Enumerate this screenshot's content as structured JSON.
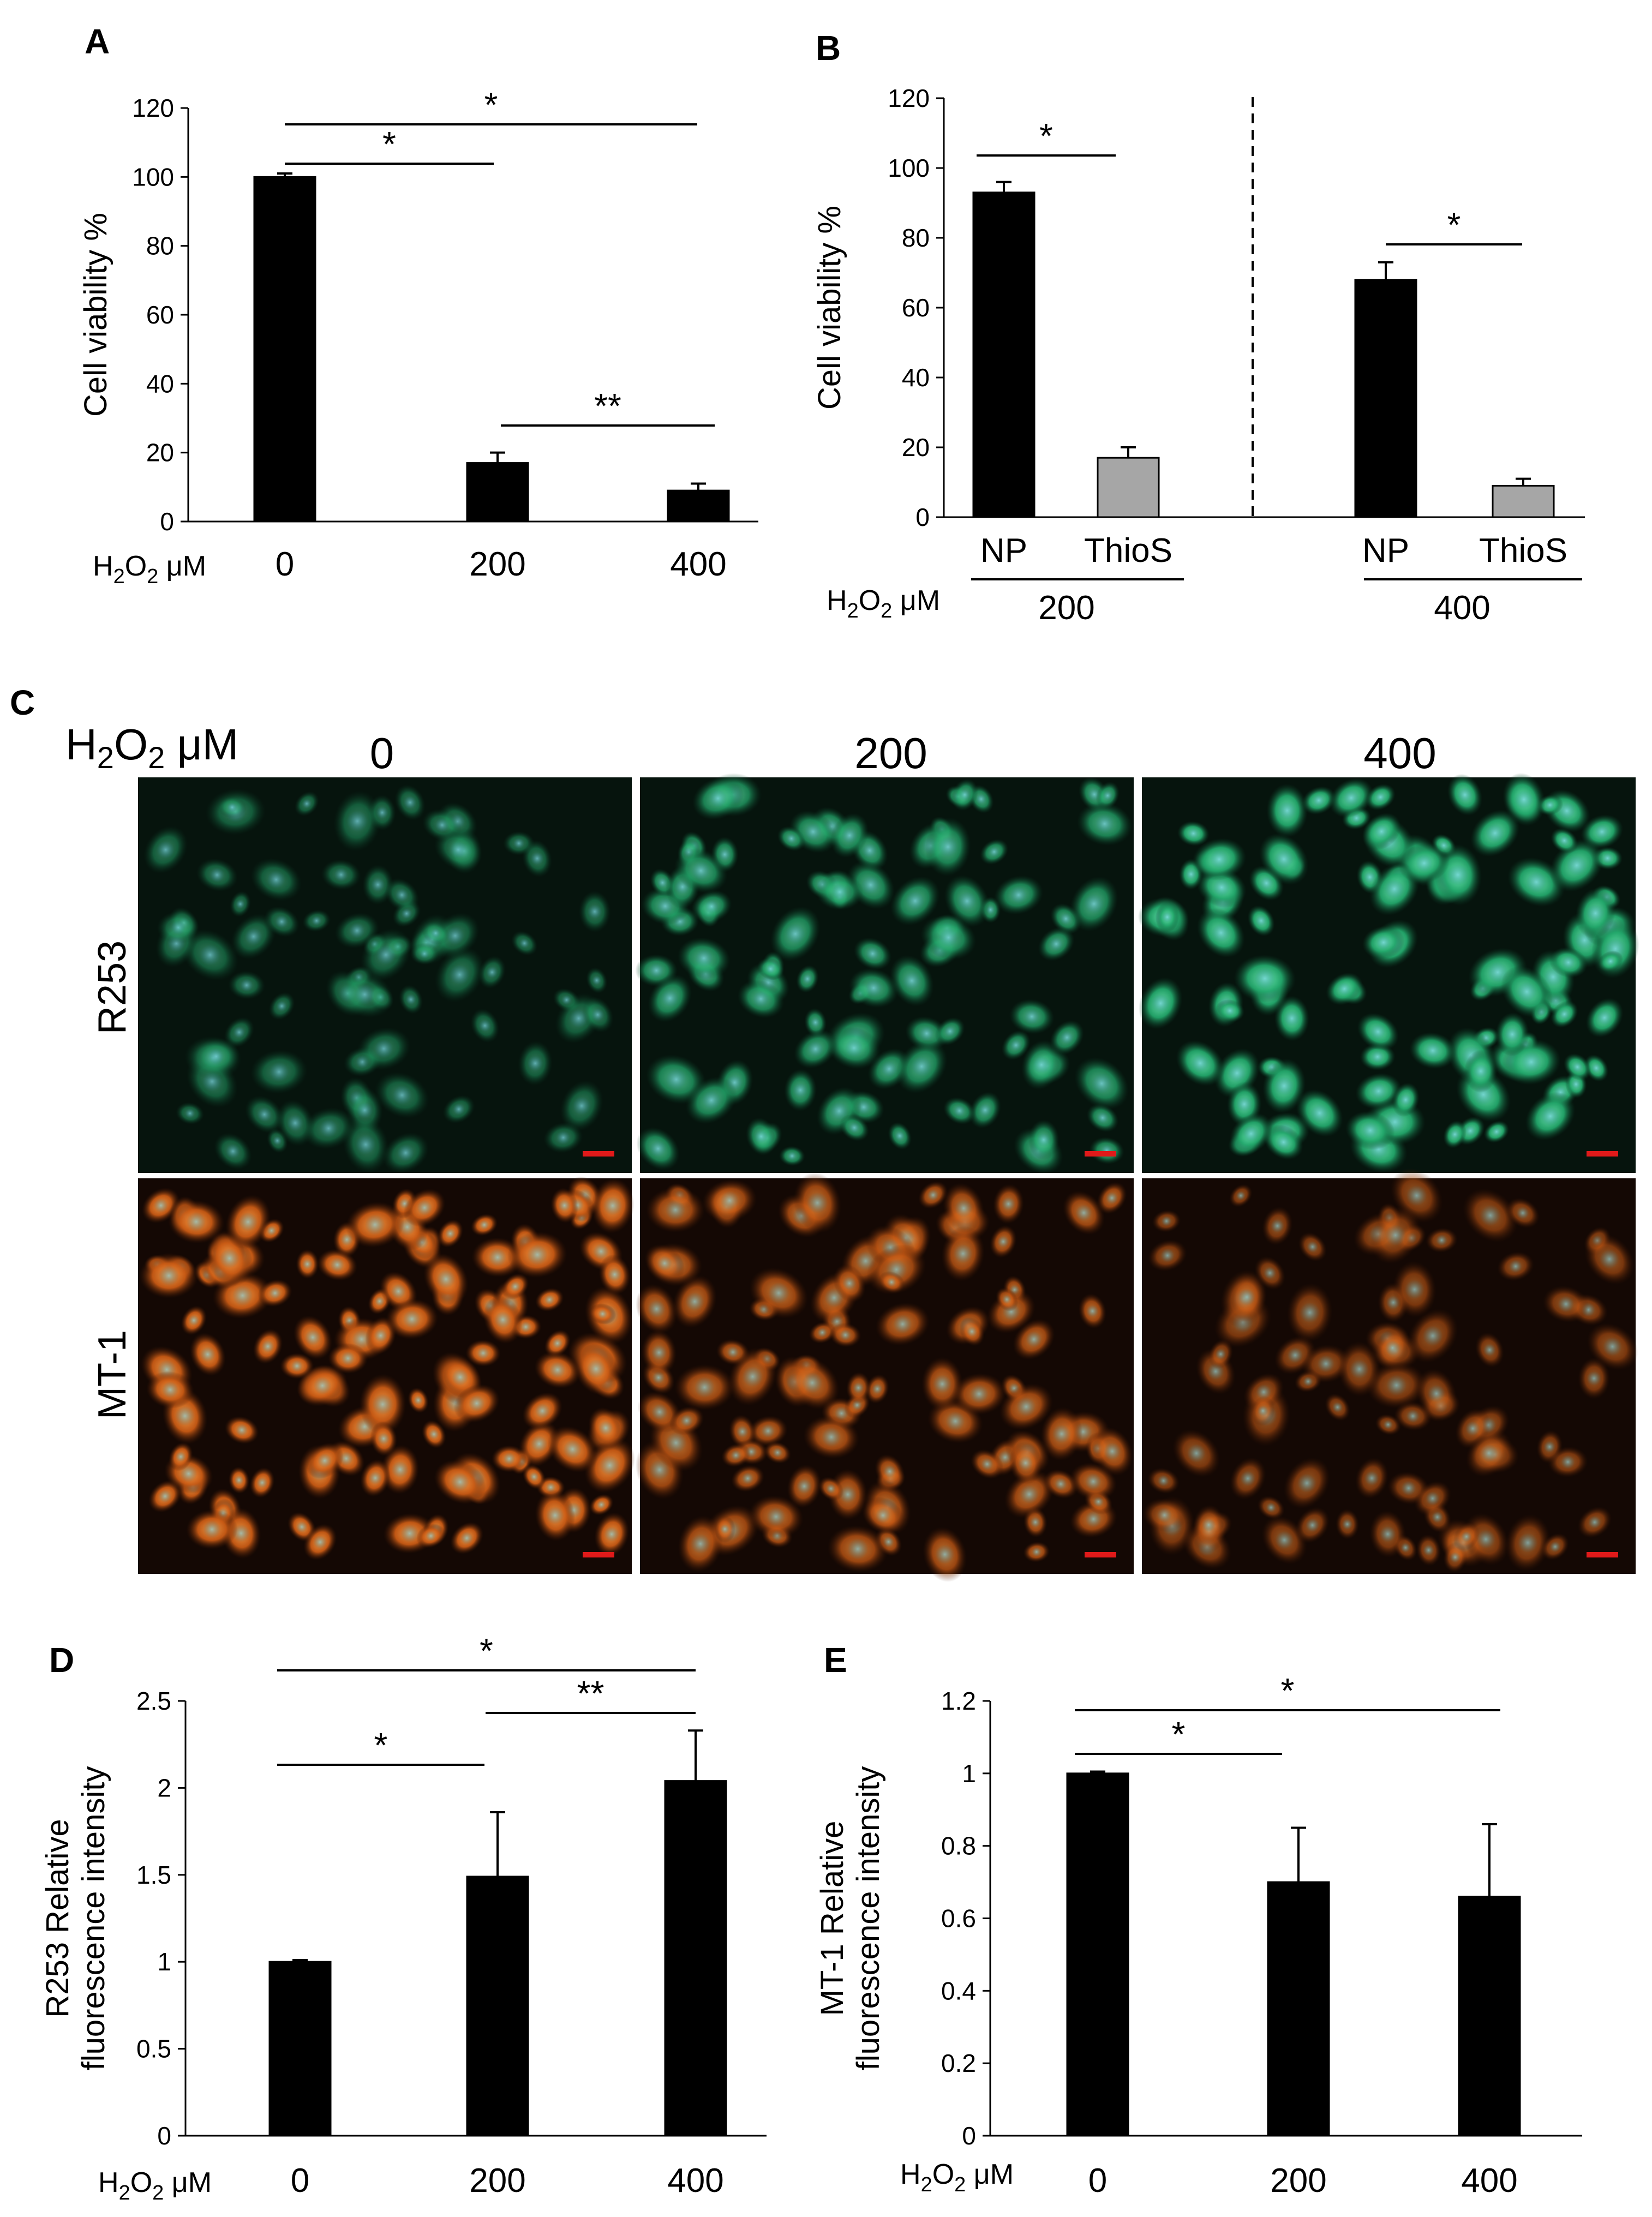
{
  "panels": {
    "A": "A",
    "B": "B",
    "C": "C",
    "D": "D",
    "E": "E"
  },
  "h2o2_label": {
    "main": "H",
    "sub1": "2",
    "mid": "O",
    "sub2": "2",
    "unit": " μM"
  },
  "colors": {
    "black_bar": "#000000",
    "gray_bar": "#a6a6a6",
    "scale_bar": "#e01a1a"
  },
  "chart_data": [
    {
      "id": "A",
      "type": "bar",
      "ylabel": "Cell viability %",
      "xlabel": "H2O2 μM",
      "categories": [
        "0",
        "200",
        "400"
      ],
      "values": [
        100,
        17,
        9
      ],
      "errors": [
        1,
        3,
        2
      ],
      "ylim": [
        0,
        120
      ],
      "yticks": [
        0,
        20,
        40,
        60,
        80,
        100,
        120
      ],
      "significance": [
        {
          "from": "0",
          "to": "200",
          "label": "*"
        },
        {
          "from": "0",
          "to": "400",
          "label": "*"
        },
        {
          "from": "200",
          "to": "400",
          "label": "**"
        }
      ]
    },
    {
      "id": "B",
      "type": "bar",
      "ylabel": "Cell viability %",
      "xlabel": "H2O2 μM",
      "groups": [
        "200",
        "400"
      ],
      "categories": [
        "NP",
        "ThioS",
        "NP",
        "ThioS"
      ],
      "values": [
        93,
        17,
        68,
        9
      ],
      "errors": [
        3,
        3,
        5,
        2
      ],
      "bar_colors": [
        "black",
        "gray",
        "black",
        "gray"
      ],
      "ylim": [
        0,
        120
      ],
      "yticks": [
        0,
        20,
        40,
        60,
        80,
        100,
        120
      ],
      "significance": [
        {
          "group": "200",
          "label": "*"
        },
        {
          "group": "400",
          "label": "*"
        }
      ]
    },
    {
      "id": "D",
      "type": "bar",
      "ylabel_lines": [
        "R253 Relative",
        "fluorescence intensity"
      ],
      "xlabel": "H2O2 μM",
      "categories": [
        "0",
        "200",
        "400"
      ],
      "values": [
        1.0,
        1.49,
        2.04
      ],
      "errors": [
        0.01,
        0.37,
        0.29
      ],
      "ylim": [
        0,
        2.5
      ],
      "yticks": [
        "0",
        "0.5",
        "1",
        "1.5",
        "2",
        "2.5"
      ],
      "significance": [
        {
          "from": "0",
          "to": "200",
          "label": "*"
        },
        {
          "from": "0",
          "to": "400",
          "label": "*"
        },
        {
          "from": "200",
          "to": "400",
          "label": "**"
        }
      ]
    },
    {
      "id": "E",
      "type": "bar",
      "ylabel_lines": [
        "MT-1 Relative",
        "fluorescence intensity"
      ],
      "xlabel": "H2O2 μM",
      "categories": [
        "0",
        "200",
        "400"
      ],
      "values": [
        1.0,
        0.7,
        0.66
      ],
      "errors": [
        0.005,
        0.15,
        0.2
      ],
      "ylim": [
        0,
        1.2
      ],
      "yticks": [
        "0",
        "0.2",
        "0.4",
        "0.6",
        "0.8",
        "1",
        "1.2"
      ],
      "significance": [
        {
          "from": "0",
          "to": "200",
          "label": "*"
        },
        {
          "from": "0",
          "to": "400",
          "label": "*"
        }
      ]
    }
  ],
  "micrographs": {
    "columns": [
      "0",
      "200",
      "400"
    ],
    "rows": [
      {
        "label": "R253",
        "stain": "green fluorescence",
        "color": "#2fbf7a",
        "intensity": [
          0.35,
          0.7,
          1.0
        ]
      },
      {
        "label": "MT-1",
        "stain": "orange fluorescence",
        "color": "#e0701c",
        "intensity": [
          1.0,
          0.7,
          0.45
        ]
      }
    ]
  }
}
